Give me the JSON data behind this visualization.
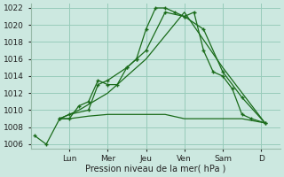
{
  "background_color": "#cce8e0",
  "grid_color": "#99ccbb",
  "line_color": "#1a6b1a",
  "xlabel": "Pression niveau de la mer( hPa )",
  "ylim": [
    1005.5,
    1022.5
  ],
  "ytick_min": 1006,
  "ytick_max": 1022,
  "ytick_step": 2,
  "day_labels": [
    "Lun",
    "Mer",
    "Jeu",
    "Ven",
    "Sam",
    "D"
  ],
  "day_positions": [
    2,
    4,
    6,
    8,
    10,
    12
  ],
  "xlim": [
    0,
    13
  ],
  "series1_main": {
    "x": [
      0.2,
      0.8,
      1.5,
      2.0,
      2.5,
      3.0,
      3.5,
      4.0,
      4.5,
      5.0,
      5.5,
      6.0,
      6.5,
      7.0,
      7.5,
      8.0,
      8.5,
      9.0,
      9.5,
      10.0,
      10.5,
      11.0,
      11.5,
      12.2
    ],
    "y": [
      1007.0,
      1006.0,
      1009.0,
      1009.0,
      1010.5,
      1011.0,
      1013.5,
      1013.0,
      1013.0,
      1015.0,
      1016.0,
      1019.5,
      1022.0,
      1022.0,
      1021.5,
      1021.0,
      1021.5,
      1017.0,
      1014.5,
      1014.0,
      1012.5,
      1009.5,
      1009.0,
      1008.5
    ]
  },
  "series2_flat": {
    "x": [
      1.5,
      2.0,
      3.0,
      4.0,
      5.0,
      6.0,
      7.0,
      8.0,
      9.0,
      10.0,
      11.0,
      12.2
    ],
    "y": [
      1009.0,
      1009.0,
      1009.3,
      1009.5,
      1009.5,
      1009.5,
      1009.5,
      1009.0,
      1009.0,
      1009.0,
      1009.0,
      1008.5
    ]
  },
  "series3_medium": {
    "x": [
      1.5,
      2.0,
      3.0,
      3.5,
      4.0,
      5.0,
      5.5,
      6.0,
      7.0,
      8.0,
      9.0,
      10.0,
      11.0,
      12.2
    ],
    "y": [
      1009.0,
      1009.5,
      1010.0,
      1013.0,
      1013.5,
      1015.0,
      1016.0,
      1017.0,
      1021.5,
      1021.0,
      1019.5,
      1014.5,
      1011.5,
      1008.5
    ]
  },
  "series4_diagonal": {
    "x": [
      1.5,
      2.5,
      4.0,
      6.0,
      8.0,
      10.0,
      12.2
    ],
    "y": [
      1009.0,
      1010.0,
      1012.0,
      1016.0,
      1021.5,
      1015.0,
      1008.5
    ]
  }
}
